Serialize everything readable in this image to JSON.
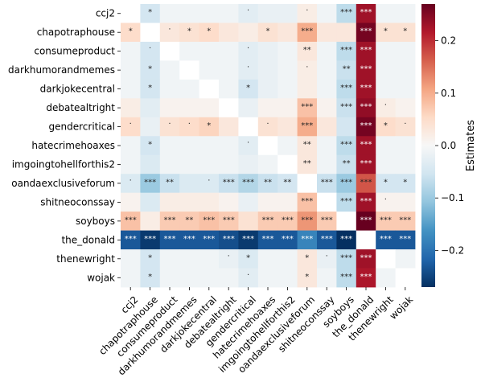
{
  "chart_data": {
    "type": "heatmap",
    "rows": [
      "ccj2",
      "chapotraphouse",
      "consumeproduct",
      "darkhumorandmemes",
      "darkjokecentral",
      "debatealtright",
      "gendercritical",
      "hatecrimehoaxes",
      "imgoingtohellforthis2",
      "oandaexclusiveforum",
      "shitneoconssay",
      "soyboys",
      "the_donald",
      "thenewright",
      "wojak"
    ],
    "columns": [
      "ccj2",
      "chapotraphouse",
      "consumeproduct",
      "darkhumorandmemes",
      "darkjokecentral",
      "debatealtright",
      "gendercritical",
      "hatecrimehoaxes",
      "imgoingtohellforthis2",
      "oandaexclusiveforum",
      "shitneoconssay",
      "soyboys",
      "the_donald",
      "thenewright",
      "wojak"
    ],
    "values": [
      [
        null,
        -0.05,
        -0.01,
        -0.01,
        -0.01,
        -0.01,
        -0.03,
        -0.02,
        -0.02,
        0.02,
        -0.01,
        -0.07,
        0.23,
        -0.01,
        -0.01
      ],
      [
        0.05,
        null,
        0.03,
        0.04,
        0.05,
        0.03,
        0.02,
        0.04,
        0.03,
        0.1,
        0.03,
        0.03,
        0.26,
        0.04,
        0.04
      ],
      [
        -0.01,
        -0.05,
        null,
        -0.01,
        -0.01,
        -0.01,
        -0.03,
        -0.02,
        -0.01,
        0.03,
        -0.01,
        -0.07,
        0.23,
        -0.01,
        -0.01
      ],
      [
        -0.01,
        -0.05,
        -0.01,
        null,
        -0.01,
        -0.01,
        -0.03,
        -0.02,
        -0.01,
        0.02,
        -0.01,
        -0.06,
        0.23,
        -0.01,
        -0.01
      ],
      [
        -0.01,
        -0.05,
        -0.01,
        -0.01,
        null,
        -0.01,
        -0.05,
        -0.02,
        -0.01,
        0.02,
        -0.01,
        -0.07,
        0.23,
        -0.01,
        -0.01
      ],
      [
        0.02,
        -0.03,
        0.01,
        0.01,
        0.01,
        null,
        -0.02,
        0.01,
        0.01,
        0.08,
        0.01,
        -0.06,
        0.24,
        0.02,
        0.01
      ],
      [
        0.05,
        -0.02,
        0.04,
        0.05,
        0.06,
        0.03,
        null,
        0.04,
        0.03,
        0.1,
        0.03,
        -0.05,
        0.26,
        0.05,
        0.04
      ],
      [
        -0.01,
        -0.05,
        -0.01,
        -0.01,
        -0.01,
        -0.01,
        -0.03,
        null,
        -0.01,
        0.03,
        -0.01,
        -0.07,
        0.23,
        -0.01,
        -0.01
      ],
      [
        -0.01,
        -0.04,
        -0.01,
        -0.01,
        -0.01,
        -0.01,
        -0.02,
        -0.01,
        null,
        0.03,
        -0.01,
        -0.06,
        0.23,
        -0.01,
        -0.01
      ],
      [
        -0.04,
        -0.1,
        -0.06,
        -0.04,
        -0.04,
        -0.06,
        -0.08,
        -0.06,
        -0.05,
        null,
        -0.06,
        -0.1,
        0.17,
        -0.05,
        -0.05
      ],
      [
        0.01,
        -0.04,
        0.02,
        0.02,
        0.02,
        0.01,
        -0.02,
        0.01,
        0.01,
        0.08,
        null,
        -0.07,
        0.23,
        0.01,
        0.01
      ],
      [
        0.08,
        0.02,
        0.07,
        0.07,
        0.08,
        0.07,
        0.04,
        0.07,
        0.07,
        0.12,
        0.07,
        null,
        0.27,
        0.07,
        0.07
      ],
      [
        -0.23,
        -0.26,
        -0.23,
        -0.23,
        -0.23,
        -0.24,
        -0.26,
        -0.23,
        -0.23,
        -0.18,
        -0.23,
        -0.27,
        null,
        -0.23,
        -0.23
      ],
      [
        -0.01,
        -0.05,
        -0.01,
        -0.01,
        -0.01,
        -0.02,
        -0.04,
        -0.01,
        -0.01,
        0.03,
        -0.02,
        -0.07,
        0.23,
        null,
        -0.01
      ],
      [
        -0.01,
        -0.05,
        -0.01,
        -0.01,
        -0.01,
        -0.01,
        -0.03,
        -0.01,
        -0.01,
        0.03,
        -0.01,
        -0.07,
        0.22,
        -0.01,
        null
      ]
    ],
    "annotations": [
      [
        "",
        "*",
        "",
        "",
        "",
        "",
        "·",
        "",
        "",
        "·",
        "",
        "***",
        "***",
        "",
        ""
      ],
      [
        "*",
        "",
        "·",
        "*",
        "*",
        "",
        "",
        "*",
        "",
        "***",
        "",
        "",
        "***",
        "*",
        "*"
      ],
      [
        "",
        "·",
        "",
        "",
        "",
        "",
        "·",
        "",
        "",
        "**",
        "",
        "***",
        "***",
        "",
        ""
      ],
      [
        "",
        "*",
        "",
        "",
        "",
        "",
        "·",
        "",
        "",
        "·",
        "",
        "**",
        "***",
        "",
        ""
      ],
      [
        "",
        "*",
        "",
        "",
        "",
        "",
        "*",
        "",
        "",
        "",
        "",
        "***",
        "***",
        "",
        ""
      ],
      [
        "",
        "",
        "",
        "",
        "",
        "",
        "",
        "",
        "",
        "***",
        "",
        "***",
        "***",
        "·",
        ""
      ],
      [
        "·",
        "",
        "·",
        "·",
        "*",
        "",
        "",
        "·",
        "",
        "***",
        "",
        "",
        "***",
        "*",
        "·"
      ],
      [
        "",
        "*",
        "",
        "",
        "",
        "",
        "·",
        "",
        "",
        "**",
        "",
        "***",
        "***",
        "",
        ""
      ],
      [
        "",
        "",
        "",
        "",
        "",
        "",
        "",
        "",
        "",
        "**",
        "",
        "**",
        "***",
        "",
        ""
      ],
      [
        "·",
        "***",
        "**",
        "",
        "·",
        "***",
        "***",
        "**",
        "**",
        "",
        "***",
        "***",
        "***",
        "*",
        "*"
      ],
      [
        "",
        "",
        "",
        "",
        "",
        "",
        "",
        "",
        "",
        "***",
        "",
        "***",
        "***",
        "·",
        ""
      ],
      [
        "***",
        "",
        "***",
        "**",
        "***",
        "***",
        "",
        "***",
        "***",
        "***",
        "***",
        "",
        "***",
        "***",
        "***"
      ],
      [
        "***",
        "***",
        "***",
        "***",
        "***",
        "***",
        "***",
        "***",
        "***",
        "***",
        "***",
        "***",
        "",
        "***",
        "***"
      ],
      [
        "",
        "*",
        "",
        "",
        "",
        "·",
        "*",
        "",
        "",
        "*",
        "·",
        "***",
        "***",
        "",
        ""
      ],
      [
        "",
        "*",
        "",
        "",
        "",
        "",
        "·",
        "",
        "",
        "*",
        "",
        "***",
        "***",
        "",
        ""
      ]
    ],
    "vmin": -0.27,
    "vmax": 0.27,
    "colorbar": {
      "label": "Estimates",
      "ticks": [
        -0.2,
        -0.1,
        0.0,
        0.1,
        0.2
      ],
      "tick_labels": [
        "−0.2",
        "−0.1",
        "0.0",
        "0.1",
        "0.2"
      ]
    },
    "colormap": [
      "#053061",
      "#2166ac",
      "#4393c3",
      "#92c5de",
      "#d1e5f0",
      "#f7f7f7",
      "#fddbc7",
      "#f4a582",
      "#d6604d",
      "#b2182b",
      "#67001f"
    ]
  }
}
